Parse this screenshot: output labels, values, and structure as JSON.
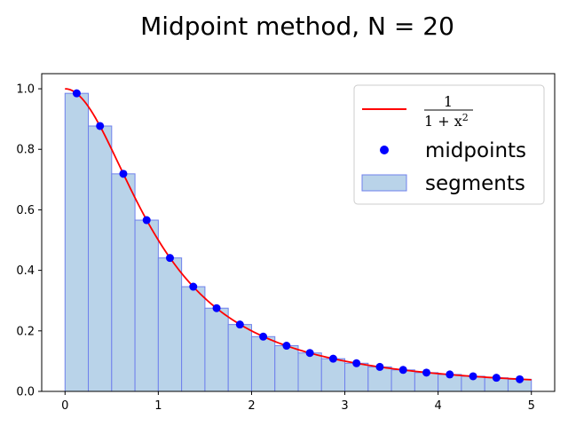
{
  "chart_data": {
    "type": "bar",
    "title": "Midpoint method, N = 20",
    "xlabel": "",
    "ylabel": "",
    "xlim": [
      -0.25,
      5.25
    ],
    "ylim": [
      0.0,
      1.05
    ],
    "xticks": [
      0,
      1,
      2,
      3,
      4,
      5
    ],
    "xtick_labels": [
      "0",
      "1",
      "2",
      "3",
      "4",
      "5"
    ],
    "yticks": [
      0.0,
      0.2,
      0.4,
      0.6,
      0.8,
      1.0
    ],
    "ytick_labels": [
      "0.0",
      "0.2",
      "0.4",
      "0.6",
      "0.8",
      "1.0"
    ],
    "grid": false,
    "legend_position": "top-right",
    "colors": {
      "curve": "#ff0000",
      "midpoints": "#0000ff",
      "segment_fill": "#b9d3e9",
      "segment_edge": "#6f80ec"
    },
    "function": {
      "label_numerator": "1",
      "label_denominator_base": "1 + x",
      "label_denominator_exponent": "2",
      "x": [
        0,
        0.25,
        0.5,
        0.75,
        1,
        1.25,
        1.5,
        1.75,
        2,
        2.25,
        2.5,
        2.75,
        3,
        3.25,
        3.5,
        3.75,
        4,
        4.25,
        4.5,
        4.75,
        5
      ],
      "y": [
        1.0,
        0.941,
        0.8,
        0.64,
        0.5,
        0.39,
        0.308,
        0.246,
        0.2,
        0.165,
        0.138,
        0.117,
        0.1,
        0.0865,
        0.0755,
        0.0664,
        0.0588,
        0.0525,
        0.0471,
        0.0424,
        0.0385
      ]
    },
    "midpoints": {
      "label": "midpoints",
      "x": [
        0.125,
        0.375,
        0.625,
        0.875,
        1.125,
        1.375,
        1.625,
        1.875,
        2.125,
        2.375,
        2.625,
        2.875,
        3.125,
        3.375,
        3.625,
        3.875,
        4.125,
        4.375,
        4.625,
        4.875
      ],
      "y": [
        0.985,
        0.877,
        0.719,
        0.566,
        0.441,
        0.346,
        0.275,
        0.221,
        0.181,
        0.151,
        0.127,
        0.108,
        0.093,
        0.081,
        0.071,
        0.062,
        0.056,
        0.05,
        0.045,
        0.04
      ]
    },
    "segments": {
      "label": "segments",
      "x_left": [
        0,
        0.25,
        0.5,
        0.75,
        1,
        1.25,
        1.5,
        1.75,
        2,
        2.25,
        2.5,
        2.75,
        3,
        3.25,
        3.5,
        3.75,
        4,
        4.25,
        4.5,
        4.75
      ],
      "width": 0.25,
      "height": [
        0.985,
        0.877,
        0.719,
        0.566,
        0.441,
        0.346,
        0.275,
        0.221,
        0.181,
        0.151,
        0.127,
        0.108,
        0.093,
        0.081,
        0.071,
        0.062,
        0.056,
        0.05,
        0.045,
        0.04
      ]
    }
  }
}
